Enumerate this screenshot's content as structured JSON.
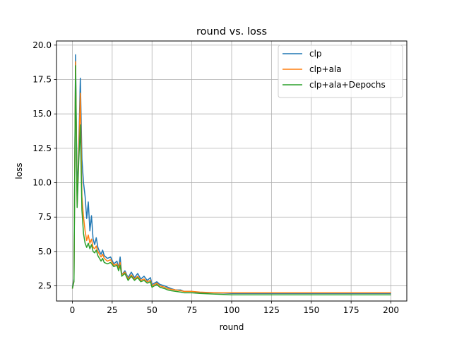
{
  "chart_data": {
    "type": "line",
    "title": "round vs. loss",
    "xlabel": "round",
    "ylabel": "loss",
    "xlim": [
      -9.96,
      209.96
    ],
    "ylim": [
      1.4,
      20.3
    ],
    "xticks": [
      0,
      25,
      50,
      75,
      100,
      125,
      150,
      175,
      200
    ],
    "yticks": [
      2.5,
      5.0,
      7.5,
      10.0,
      12.5,
      15.0,
      17.5,
      20.0
    ],
    "xtick_labels": [
      "0",
      "25",
      "50",
      "75",
      "100",
      "125",
      "150",
      "175",
      "200"
    ],
    "ytick_labels": [
      "2.5",
      "5.0",
      "7.5",
      "10.0",
      "12.5",
      "15.0",
      "17.5",
      "20.0"
    ],
    "grid": true,
    "legend_position": "top-right",
    "series": [
      {
        "name": "clp",
        "color": "#1f77b4",
        "points": [
          [
            0,
            2.4
          ],
          [
            1,
            3.0
          ],
          [
            2,
            19.3
          ],
          [
            3,
            9.0
          ],
          [
            4,
            12.5
          ],
          [
            5,
            17.6
          ],
          [
            6,
            11.7
          ],
          [
            7,
            10.0
          ],
          [
            8,
            9.0
          ],
          [
            9,
            7.4
          ],
          [
            10,
            8.6
          ],
          [
            11,
            6.5
          ],
          [
            12,
            7.6
          ],
          [
            13,
            5.9
          ],
          [
            14,
            5.5
          ],
          [
            15,
            6.0
          ],
          [
            16,
            5.3
          ],
          [
            17,
            5.0
          ],
          [
            18,
            4.8
          ],
          [
            19,
            5.1
          ],
          [
            20,
            4.7
          ],
          [
            22,
            4.5
          ],
          [
            24,
            4.6
          ],
          [
            26,
            4.1
          ],
          [
            28,
            4.3
          ],
          [
            29,
            3.8
          ],
          [
            30,
            4.6
          ],
          [
            31,
            3.3
          ],
          [
            33,
            3.6
          ],
          [
            35,
            3.1
          ],
          [
            37,
            3.5
          ],
          [
            39,
            3.1
          ],
          [
            41,
            3.4
          ],
          [
            43,
            3.0
          ],
          [
            45,
            3.2
          ],
          [
            47,
            2.9
          ],
          [
            49,
            3.1
          ],
          [
            50,
            2.6
          ],
          [
            53,
            2.8
          ],
          [
            55,
            2.6
          ],
          [
            58,
            2.5
          ],
          [
            60,
            2.4
          ],
          [
            62,
            2.3
          ],
          [
            65,
            2.2
          ],
          [
            68,
            2.2
          ],
          [
            70,
            2.1
          ],
          [
            75,
            2.1
          ],
          [
            80,
            2.0
          ],
          [
            90,
            2.0
          ],
          [
            100,
            1.95
          ],
          [
            110,
            1.95
          ],
          [
            120,
            1.95
          ],
          [
            130,
            1.95
          ],
          [
            140,
            1.95
          ],
          [
            150,
            1.95
          ],
          [
            160,
            1.95
          ],
          [
            170,
            1.95
          ],
          [
            180,
            1.95
          ],
          [
            190,
            1.95
          ],
          [
            200,
            1.95
          ]
        ]
      },
      {
        "name": "clp+ala",
        "color": "#ff7f0e",
        "points": [
          [
            0,
            2.3
          ],
          [
            1,
            2.9
          ],
          [
            2,
            18.8
          ],
          [
            3,
            8.3
          ],
          [
            4,
            12.0
          ],
          [
            5,
            16.5
          ],
          [
            6,
            9.0
          ],
          [
            7,
            7.5
          ],
          [
            8,
            6.5
          ],
          [
            9,
            5.8
          ],
          [
            10,
            6.2
          ],
          [
            11,
            5.6
          ],
          [
            12,
            5.9
          ],
          [
            13,
            5.3
          ],
          [
            14,
            5.2
          ],
          [
            15,
            5.4
          ],
          [
            16,
            5.0
          ],
          [
            17,
            4.8
          ],
          [
            18,
            4.6
          ],
          [
            19,
            4.8
          ],
          [
            20,
            4.5
          ],
          [
            22,
            4.3
          ],
          [
            24,
            4.4
          ],
          [
            26,
            4.0
          ],
          [
            28,
            4.1
          ],
          [
            29,
            3.8
          ],
          [
            30,
            4.2
          ],
          [
            31,
            3.3
          ],
          [
            33,
            3.5
          ],
          [
            35,
            3.0
          ],
          [
            37,
            3.3
          ],
          [
            39,
            3.0
          ],
          [
            41,
            3.2
          ],
          [
            43,
            2.9
          ],
          [
            45,
            3.0
          ],
          [
            47,
            2.8
          ],
          [
            49,
            2.9
          ],
          [
            50,
            2.5
          ],
          [
            53,
            2.7
          ],
          [
            55,
            2.5
          ],
          [
            58,
            2.4
          ],
          [
            60,
            2.3
          ],
          [
            62,
            2.25
          ],
          [
            65,
            2.2
          ],
          [
            68,
            2.15
          ],
          [
            70,
            2.1
          ],
          [
            75,
            2.1
          ],
          [
            80,
            2.05
          ],
          [
            90,
            2.0
          ],
          [
            100,
            2.0
          ],
          [
            110,
            2.0
          ],
          [
            120,
            2.0
          ],
          [
            130,
            2.0
          ],
          [
            140,
            2.0
          ],
          [
            150,
            2.0
          ],
          [
            160,
            2.0
          ],
          [
            170,
            2.0
          ],
          [
            180,
            2.0
          ],
          [
            190,
            2.0
          ],
          [
            200,
            2.0
          ]
        ]
      },
      {
        "name": "clp+ala+Depochs",
        "color": "#2ca02c",
        "points": [
          [
            0,
            2.3
          ],
          [
            1,
            2.8
          ],
          [
            2,
            18.5
          ],
          [
            3,
            8.2
          ],
          [
            4,
            11.5
          ],
          [
            5,
            14.2
          ],
          [
            6,
            8.0
          ],
          [
            7,
            6.3
          ],
          [
            8,
            5.6
          ],
          [
            9,
            5.3
          ],
          [
            10,
            5.6
          ],
          [
            11,
            5.2
          ],
          [
            12,
            5.5
          ],
          [
            13,
            5.0
          ],
          [
            14,
            4.9
          ],
          [
            15,
            5.1
          ],
          [
            16,
            4.7
          ],
          [
            17,
            4.5
          ],
          [
            18,
            4.3
          ],
          [
            19,
            4.5
          ],
          [
            20,
            4.2
          ],
          [
            22,
            4.1
          ],
          [
            24,
            4.2
          ],
          [
            26,
            3.9
          ],
          [
            28,
            4.0
          ],
          [
            29,
            3.6
          ],
          [
            30,
            4.0
          ],
          [
            31,
            3.2
          ],
          [
            33,
            3.4
          ],
          [
            35,
            2.9
          ],
          [
            37,
            3.2
          ],
          [
            39,
            2.9
          ],
          [
            41,
            3.1
          ],
          [
            43,
            2.8
          ],
          [
            45,
            2.9
          ],
          [
            47,
            2.7
          ],
          [
            49,
            2.8
          ],
          [
            50,
            2.4
          ],
          [
            53,
            2.6
          ],
          [
            55,
            2.4
          ],
          [
            58,
            2.3
          ],
          [
            60,
            2.2
          ],
          [
            62,
            2.15
          ],
          [
            65,
            2.1
          ],
          [
            68,
            2.05
          ],
          [
            70,
            2.0
          ],
          [
            75,
            2.0
          ],
          [
            80,
            1.95
          ],
          [
            90,
            1.9
          ],
          [
            100,
            1.85
          ],
          [
            110,
            1.85
          ],
          [
            120,
            1.85
          ],
          [
            130,
            1.85
          ],
          [
            140,
            1.85
          ],
          [
            150,
            1.85
          ],
          [
            160,
            1.85
          ],
          [
            170,
            1.85
          ],
          [
            180,
            1.85
          ],
          [
            190,
            1.85
          ],
          [
            200,
            1.85
          ]
        ]
      }
    ]
  }
}
